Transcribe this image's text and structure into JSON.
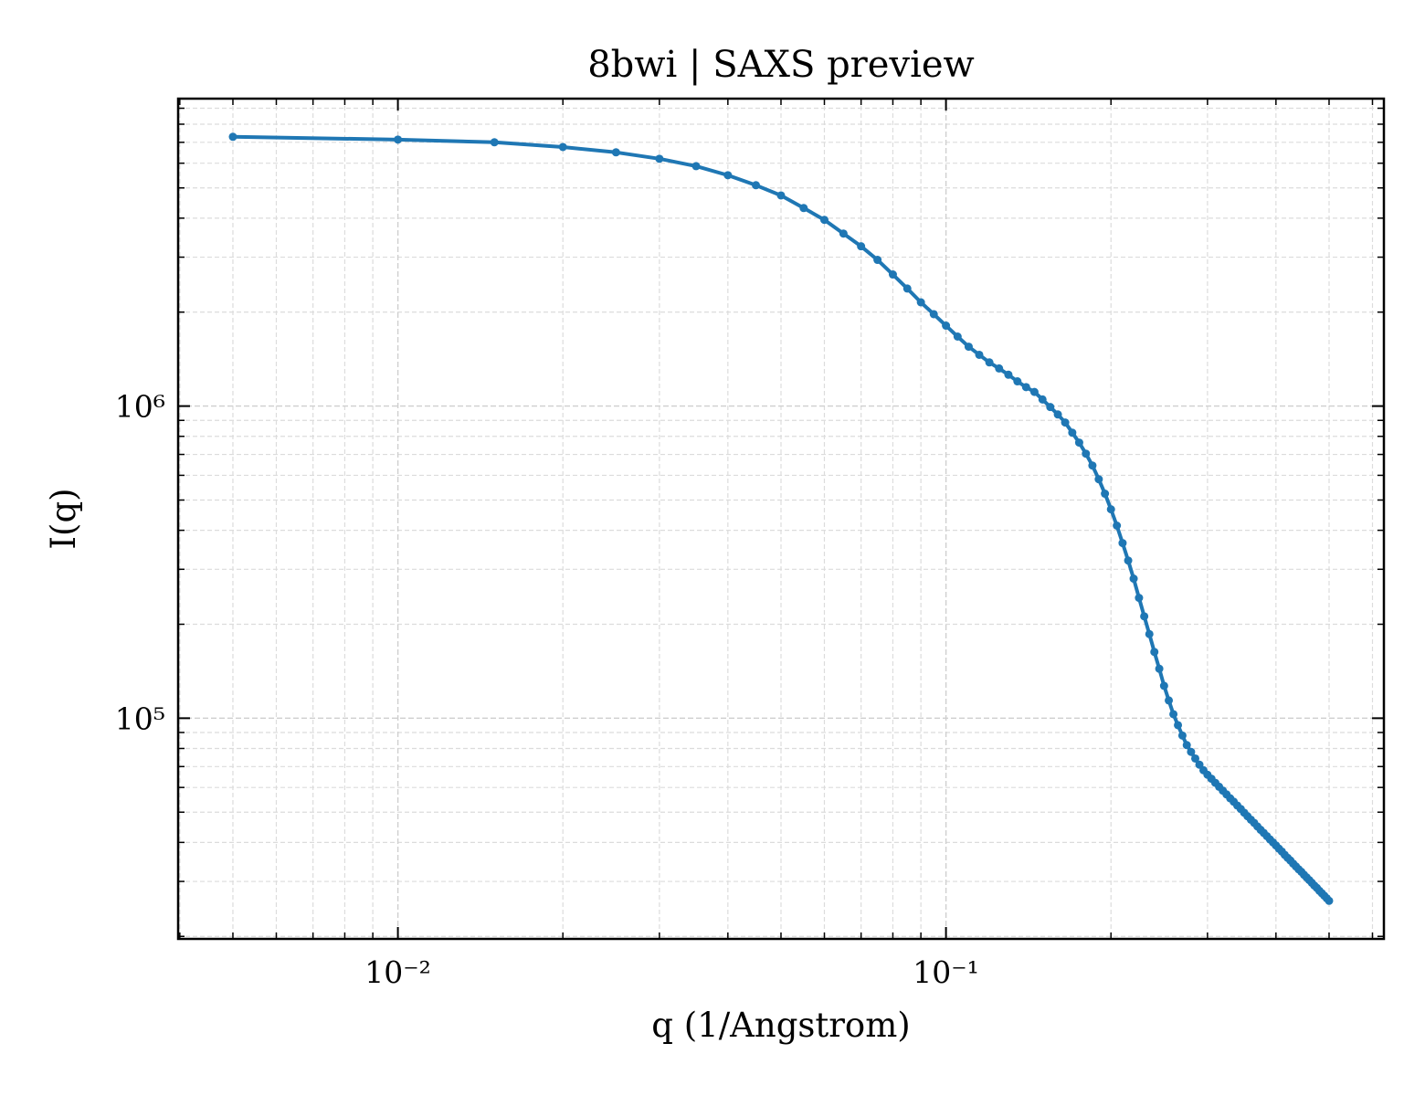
{
  "chart_data": {
    "type": "line",
    "title": "8bwi | SAXS preview",
    "x_label": "q (1/Angstrom)",
    "y_label": "I(q)",
    "log_x": true,
    "log_y": true,
    "grid": true,
    "xlim": [
      0.003972,
      0.6295
    ],
    "ylim": [
      19630,
      9660000
    ],
    "xticks": [
      {
        "value": 0.01,
        "label": "10⁻²"
      },
      {
        "value": 0.1,
        "label": "10⁻¹"
      }
    ],
    "yticks": [
      {
        "value": 100000,
        "label": "10⁵"
      },
      {
        "value": 1000000,
        "label": "10⁶"
      }
    ],
    "x": [
      0.005,
      0.01,
      0.015,
      0.02,
      0.025,
      0.03,
      0.035,
      0.04,
      0.045,
      0.05,
      0.055,
      0.06,
      0.065,
      0.07,
      0.075,
      0.08,
      0.085,
      0.09,
      0.095,
      0.1,
      0.105,
      0.11,
      0.115,
      0.12,
      0.125,
      0.13,
      0.135,
      0.14,
      0.145,
      0.15,
      0.155,
      0.16,
      0.165,
      0.17,
      0.175,
      0.18,
      0.185,
      0.19,
      0.195,
      0.2,
      0.205,
      0.21,
      0.215,
      0.22,
      0.225,
      0.23,
      0.235,
      0.24,
      0.245,
      0.25,
      0.255,
      0.26,
      0.265,
      0.27,
      0.275,
      0.28,
      0.285,
      0.29,
      0.295,
      0.3,
      0.305,
      0.31,
      0.315,
      0.32,
      0.325,
      0.33,
      0.335,
      0.34,
      0.345,
      0.35,
      0.355,
      0.36,
      0.365,
      0.37,
      0.375,
      0.38,
      0.385,
      0.39,
      0.395,
      0.4,
      0.405,
      0.41,
      0.415,
      0.42,
      0.425,
      0.43,
      0.435,
      0.44,
      0.445,
      0.45,
      0.455,
      0.46,
      0.465,
      0.47,
      0.475,
      0.48,
      0.485,
      0.49,
      0.495,
      0.5
    ],
    "series": [
      {
        "name": "I(q)",
        "color": "#1f77b4",
        "values": [
          7290000,
          7140000,
          7000000,
          6760000,
          6500000,
          6200000,
          5870000,
          5490000,
          5100000,
          4730000,
          4310000,
          3950000,
          3570000,
          3250000,
          2940000,
          2640000,
          2380000,
          2150000,
          1970000,
          1810000,
          1670000,
          1550000,
          1460000,
          1380000,
          1320000,
          1260000,
          1200000,
          1150000,
          1110000,
          1050000,
          993000,
          940000,
          886000,
          822000,
          764000,
          704000,
          645000,
          583000,
          524000,
          467000,
          414000,
          364000,
          320000,
          280000,
          243000,
          212000,
          186000,
          163000,
          144000,
          127000,
          114000,
          103000,
          95000,
          88000,
          82000,
          78000,
          74300,
          71000,
          68100,
          65900,
          64000,
          62100,
          60300,
          58600,
          57000,
          55400,
          54000,
          52500,
          51200,
          49800,
          48500,
          47300,
          46200,
          45000,
          43900,
          42900,
          41900,
          40900,
          40000,
          39100,
          38200,
          37400,
          36500,
          35700,
          35000,
          34200,
          33500,
          32800,
          32200,
          31500,
          30900,
          30300,
          29700,
          29100,
          28600,
          28000,
          27500,
          27000,
          26500,
          26000
        ]
      }
    ]
  }
}
